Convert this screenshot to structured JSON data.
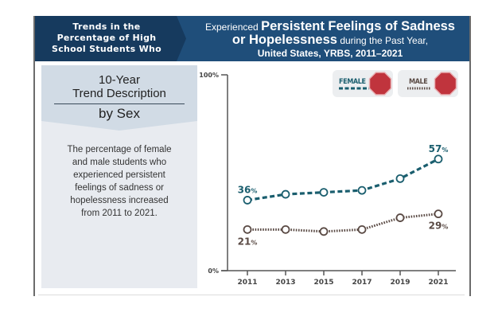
{
  "banner": {
    "left_title": [
      "Trends in the",
      "Percentage of High",
      "School Students Who"
    ],
    "right_title_prefix": "Experienced",
    "right_title_emphasis_1": "Persistent Feelings of Sadness",
    "right_title_emphasis_2": "or Hopelessness",
    "right_title_suffix": "during the Past Year,",
    "right_title_line3": "United States, YRBS, 2011–2021"
  },
  "left_panel": {
    "title_line1": "10-Year",
    "title_line2": "Trend Description",
    "subtitle": "by Sex",
    "description": [
      "The percentage of female",
      "and male students who",
      "experienced persistent",
      "feelings of sadness or",
      "hopelessness increased",
      "from 2011 to 2021."
    ]
  },
  "legend": {
    "female": {
      "label": "FEMALE",
      "icon": "stop-sign-icon",
      "color": "#1a5e6e"
    },
    "male": {
      "label": "MALE",
      "icon": "stop-sign-icon",
      "color": "#5a4a44"
    },
    "stop_sign_color": "#c0343d"
  },
  "chart_data": {
    "type": "line",
    "title": "Experienced Persistent Feelings of Sadness or Hopelessness during the Past Year, United States, YRBS, 2011–2021",
    "xlabel": "",
    "ylabel": "",
    "x": [
      "2011",
      "2013",
      "2015",
      "2017",
      "2019",
      "2021"
    ],
    "ylim": [
      0,
      100
    ],
    "y_tick_labels": [
      "0%",
      "100%"
    ],
    "grid": false,
    "legend_position": "top-right",
    "series": [
      {
        "name": "FEMALE",
        "style": "dashed",
        "color": "#1a5e6e",
        "values": [
          36,
          39,
          40,
          41,
          47,
          57
        ],
        "labels": [
          {
            "index": 0,
            "text": "36",
            "suffix": "%",
            "position": "above"
          },
          {
            "index": 5,
            "text": "57",
            "suffix": "%",
            "position": "above"
          }
        ]
      },
      {
        "name": "MALE",
        "style": "dotted",
        "color": "#5a4a44",
        "values": [
          21,
          21,
          20,
          21,
          27,
          29
        ],
        "labels": [
          {
            "index": 0,
            "text": "21",
            "suffix": "%",
            "position": "below"
          },
          {
            "index": 5,
            "text": "29",
            "suffix": "%",
            "position": "below"
          }
        ]
      }
    ]
  }
}
